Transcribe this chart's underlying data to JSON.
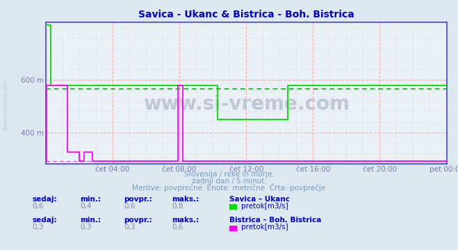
{
  "title": "Savica - Ukanc & Bistrica - Boh. Bistrica",
  "title_color": "#0000cc",
  "bg_color": "#dce8f0",
  "plot_bg_color": "#e8f0f8",
  "grid_color_major_h": "#ffaaaa",
  "grid_color_major_v": "#ffaaaa",
  "grid_color_minor": "#ddcccc",
  "x_label_color": "#7777bb",
  "y_label_color": "#7777bb",
  "watermark": "www.si-vreme.com",
  "watermark_color": "#c0c8d8",
  "subtitle1": "Slovenija / reke in morje.",
  "subtitle2": "zadnji dan / 5 minut.",
  "subtitle3": "Meritve: povprečne  Enote: metrične  Črta: povprečje",
  "subtitle_color": "#7799bb",
  "ylim_min": 280,
  "ylim_max": 820,
  "yticks": [
    400,
    600
  ],
  "ytick_labels": [
    "400 m",
    "600 m"
  ],
  "xtick_hours": [
    4,
    8,
    12,
    16,
    20,
    24
  ],
  "xtick_labels": [
    "čet 04:00",
    "čet 08:00",
    "čet 12:00",
    "čet 16:00",
    "čet 20:00",
    "pet 00:00"
  ],
  "line1_color": "#00dd00",
  "line2_color": "#ff00ff",
  "avg1_color": "#00bb00",
  "avg2_color": "#ff44ff",
  "avg1_value": 567,
  "avg2_value": 290,
  "line1_data_x": [
    0,
    0.3,
    0.3,
    0.5,
    0.5,
    2.5,
    2.5,
    10.3,
    10.3,
    11.0,
    11.0,
    14.5,
    14.5,
    15.2,
    15.2,
    24
  ],
  "line1_data_y": [
    810,
    810,
    580,
    580,
    580,
    580,
    580,
    580,
    450,
    450,
    450,
    450,
    580,
    580,
    580,
    580
  ],
  "line2_data_x": [
    0,
    0.05,
    0.05,
    1.3,
    1.3,
    2.0,
    2.0,
    2.3,
    2.3,
    2.8,
    2.8,
    3.2,
    3.2,
    7.9,
    7.9,
    8.2,
    8.2,
    8.5,
    8.5,
    9.0,
    9.0,
    9.3,
    9.3,
    24
  ],
  "line2_data_y": [
    290,
    290,
    580,
    580,
    325,
    325,
    290,
    290,
    325,
    325,
    290,
    290,
    290,
    290,
    580,
    580,
    290,
    290,
    290,
    290,
    290,
    290,
    290,
    290
  ],
  "legend1_label": "Savica – Ukanc",
  "legend2_label": "Bistrica – Boh. Bistrica",
  "unit1": "pretok[m3/s]",
  "unit2": "pretok[m3/s]",
  "stats1": {
    "sedaj": "0,6",
    "min": "0,4",
    "povpr": "0,6",
    "maks": "0,8"
  },
  "stats2": {
    "sedaj": "0,3",
    "min": "0,3",
    "povpr": "0,3",
    "maks": "0,6"
  },
  "stat_color": "#0000cc",
  "stat_value_color": "#8888aa",
  "spine_color": "#4444cc",
  "axis_arrow_color": "#cc2222"
}
